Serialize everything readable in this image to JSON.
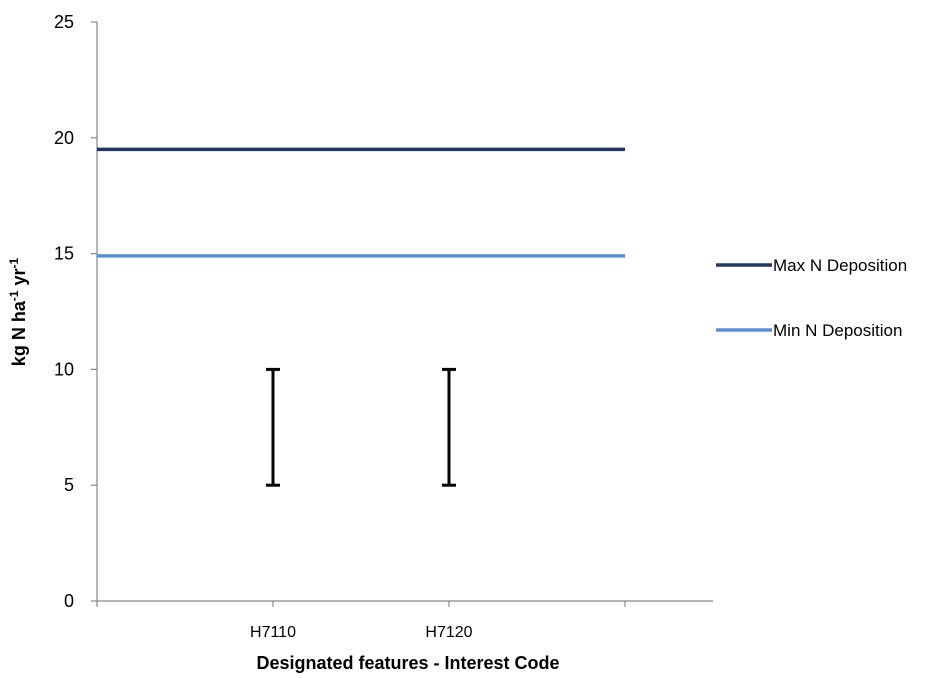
{
  "chart_data": {
    "type": "line",
    "categories": [
      "",
      "H7110",
      "H7120",
      ""
    ],
    "series": [
      {
        "name": "Max N Deposition",
        "values": [
          19.5,
          19.5,
          19.5,
          19.5
        ],
        "color": "#1f3864"
      },
      {
        "name": "Min N Deposition",
        "values": [
          14.9,
          14.9,
          14.9,
          14.9
        ],
        "color": "#5b8fd6"
      }
    ],
    "ranges": [
      {
        "category": "H7110",
        "low": 5,
        "high": 10
      },
      {
        "category": "H7120",
        "low": 5,
        "high": 10
      }
    ],
    "xlabel": "Designated features - Interest Code",
    "ylabel": {
      "base": "kg N ha",
      "sup1": "-1",
      "mid": " yr",
      "sup2": "-1"
    },
    "ylim": [
      0,
      25
    ],
    "yticks": [
      0,
      5,
      10,
      15,
      20,
      25
    ],
    "grid": false,
    "legend_position": "right"
  }
}
